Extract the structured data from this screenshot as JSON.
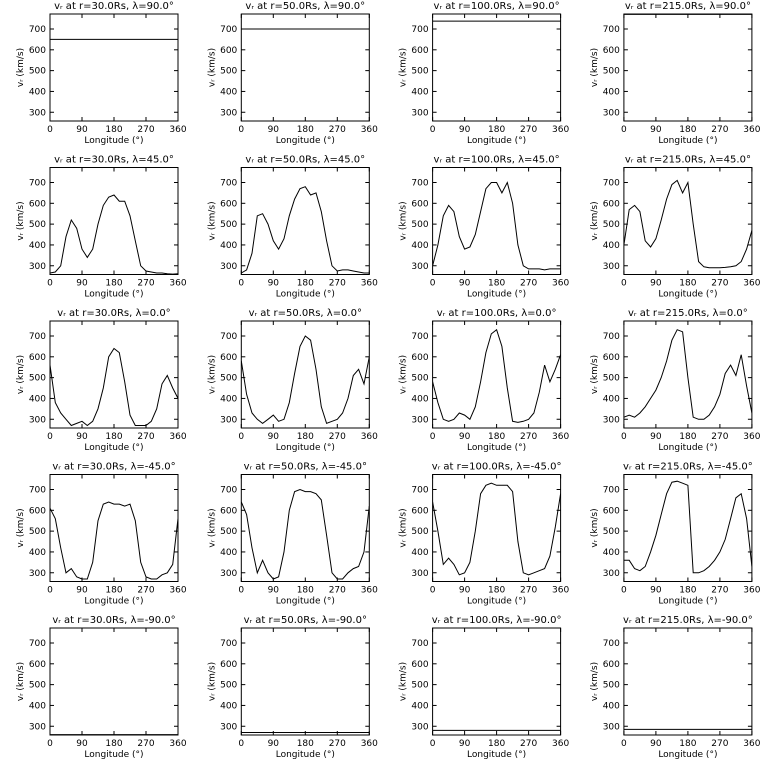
{
  "chart_data": [
    {
      "type": "line",
      "title": "vᵣ at r=30.0Rs, λ=90.0°",
      "xlabel": "Longitude (°)",
      "ylabel": "vᵣ (km/s)",
      "x": [
        0,
        360
      ],
      "values": [
        650,
        650
      ],
      "xlim": [
        0,
        360
      ],
      "ylim": [
        258,
        772
      ],
      "xticks": [
        0,
        90,
        180,
        270,
        360
      ],
      "yticks": [
        300,
        400,
        500,
        600,
        700
      ]
    },
    {
      "type": "line",
      "title": "vᵣ at r=50.0Rs, λ=90.0°",
      "xlabel": "Longitude (°)",
      "ylabel": "vᵣ (km/s)",
      "x": [
        0,
        360
      ],
      "values": [
        700,
        700
      ],
      "xlim": [
        0,
        360
      ],
      "ylim": [
        258,
        772
      ],
      "xticks": [
        0,
        90,
        180,
        270,
        360
      ],
      "yticks": [
        300,
        400,
        500,
        600,
        700
      ]
    },
    {
      "type": "line",
      "title": "vᵣ at r=100.0Rs, λ=90.0°",
      "xlabel": "Longitude (°)",
      "ylabel": "vᵣ (km/s)",
      "x": [
        0,
        360
      ],
      "values": [
        738,
        738
      ],
      "xlim": [
        0,
        360
      ],
      "ylim": [
        258,
        772
      ],
      "xticks": [
        0,
        90,
        180,
        270,
        360
      ],
      "yticks": [
        300,
        400,
        500,
        600,
        700
      ]
    },
    {
      "type": "line",
      "title": "vᵣ at r=215.0Rs, λ=90.0°",
      "xlabel": "Longitude (°)",
      "ylabel": "vᵣ (km/s)",
      "x": [
        0,
        360
      ],
      "values": [
        770,
        770
      ],
      "xlim": [
        0,
        360
      ],
      "ylim": [
        258,
        772
      ],
      "xticks": [
        0,
        90,
        180,
        270,
        360
      ],
      "yticks": [
        300,
        400,
        500,
        600,
        700
      ]
    },
    {
      "type": "line",
      "title": "vᵣ at r=30.0Rs, λ=45.0°",
      "xlabel": "Longitude (°)",
      "ylabel": "vᵣ (km/s)",
      "x": [
        0,
        15,
        30,
        45,
        60,
        75,
        90,
        105,
        120,
        135,
        150,
        165,
        180,
        195,
        210,
        225,
        240,
        255,
        270,
        285,
        300,
        315,
        330,
        345,
        360
      ],
      "values": [
        265,
        270,
        300,
        440,
        520,
        480,
        380,
        340,
        380,
        500,
        590,
        630,
        640,
        610,
        610,
        540,
        420,
        300,
        275,
        270,
        265,
        265,
        262,
        260,
        262
      ],
      "xlim": [
        0,
        360
      ],
      "ylim": [
        258,
        772
      ],
      "xticks": [
        0,
        90,
        180,
        270,
        360
      ],
      "yticks": [
        300,
        400,
        500,
        600,
        700
      ]
    },
    {
      "type": "line",
      "title": "vᵣ at r=50.0Rs, λ=45.0°",
      "xlabel": "Longitude (°)",
      "ylabel": "vᵣ (km/s)",
      "x": [
        0,
        15,
        30,
        45,
        60,
        75,
        90,
        105,
        120,
        135,
        150,
        165,
        180,
        195,
        210,
        225,
        240,
        255,
        270,
        285,
        300,
        315,
        330,
        345,
        360
      ],
      "values": [
        265,
        280,
        360,
        540,
        550,
        500,
        420,
        380,
        430,
        540,
        620,
        670,
        680,
        640,
        650,
        560,
        420,
        300,
        275,
        280,
        280,
        275,
        270,
        265,
        265
      ],
      "xlim": [
        0,
        360
      ],
      "ylim": [
        258,
        772
      ],
      "xticks": [
        0,
        90,
        180,
        270,
        360
      ],
      "yticks": [
        300,
        400,
        500,
        600,
        700
      ]
    },
    {
      "type": "line",
      "title": "vᵣ at r=100.0Rs, λ=45.0°",
      "xlabel": "Longitude (°)",
      "ylabel": "vᵣ (km/s)",
      "x": [
        0,
        15,
        30,
        45,
        60,
        75,
        90,
        105,
        120,
        135,
        150,
        165,
        180,
        195,
        210,
        225,
        240,
        255,
        270,
        285,
        300,
        315,
        330,
        345,
        360
      ],
      "values": [
        300,
        400,
        540,
        590,
        560,
        440,
        380,
        390,
        450,
        560,
        670,
        700,
        700,
        650,
        700,
        600,
        400,
        300,
        285,
        285,
        285,
        280,
        285,
        285,
        285
      ],
      "xlim": [
        0,
        360
      ],
      "ylim": [
        258,
        772
      ],
      "xticks": [
        0,
        90,
        180,
        270,
        360
      ],
      "yticks": [
        300,
        400,
        500,
        600,
        700
      ]
    },
    {
      "type": "line",
      "title": "vᵣ at r=215.0Rs, λ=45.0°",
      "xlabel": "Longitude (°)",
      "ylabel": "vᵣ (km/s)",
      "x": [
        0,
        15,
        30,
        45,
        60,
        75,
        90,
        105,
        120,
        135,
        150,
        165,
        180,
        195,
        210,
        225,
        240,
        255,
        270,
        285,
        300,
        315,
        330,
        345,
        360
      ],
      "values": [
        400,
        570,
        590,
        560,
        420,
        390,
        430,
        520,
        620,
        690,
        710,
        650,
        700,
        500,
        320,
        295,
        290,
        290,
        290,
        292,
        295,
        300,
        320,
        380,
        470
      ],
      "xlim": [
        0,
        360
      ],
      "ylim": [
        258,
        772
      ],
      "xticks": [
        0,
        90,
        180,
        270,
        360
      ],
      "yticks": [
        300,
        400,
        500,
        600,
        700
      ]
    },
    {
      "type": "line",
      "title": "vᵣ at r=30.0Rs, λ=0.0°",
      "xlabel": "Longitude (°)",
      "ylabel": "vᵣ (km/s)",
      "x": [
        0,
        15,
        30,
        45,
        60,
        75,
        90,
        105,
        120,
        135,
        150,
        165,
        180,
        195,
        210,
        225,
        240,
        255,
        270,
        285,
        300,
        315,
        330,
        345,
        360
      ],
      "values": [
        560,
        380,
        330,
        300,
        270,
        280,
        290,
        270,
        290,
        350,
        450,
        600,
        640,
        620,
        480,
        320,
        270,
        270,
        270,
        290,
        350,
        470,
        510,
        450,
        400
      ],
      "xlim": [
        0,
        360
      ],
      "ylim": [
        258,
        772
      ],
      "xticks": [
        0,
        90,
        180,
        270,
        360
      ],
      "yticks": [
        300,
        400,
        500,
        600,
        700
      ]
    },
    {
      "type": "line",
      "title": "vᵣ at r=50.0Rs, λ=0.0°",
      "xlabel": "Longitude (°)",
      "ylabel": "vᵣ (km/s)",
      "x": [
        0,
        15,
        30,
        45,
        60,
        75,
        90,
        105,
        120,
        135,
        150,
        165,
        180,
        195,
        210,
        225,
        240,
        255,
        270,
        285,
        300,
        315,
        330,
        345,
        360
      ],
      "values": [
        580,
        420,
        330,
        300,
        280,
        300,
        320,
        290,
        300,
        380,
        520,
        650,
        700,
        680,
        540,
        360,
        280,
        290,
        300,
        330,
        400,
        510,
        540,
        470,
        600
      ],
      "xlim": [
        0,
        360
      ],
      "ylim": [
        258,
        772
      ],
      "xticks": [
        0,
        90,
        180,
        270,
        360
      ],
      "yticks": [
        300,
        400,
        500,
        600,
        700
      ]
    },
    {
      "type": "line",
      "title": "vᵣ at r=100.0Rs, λ=0.0°",
      "xlabel": "Longitude (°)",
      "ylabel": "vᵣ (km/s)",
      "x": [
        0,
        15,
        30,
        45,
        60,
        75,
        90,
        105,
        120,
        135,
        150,
        165,
        180,
        195,
        210,
        225,
        240,
        255,
        270,
        285,
        300,
        315,
        330,
        345,
        360
      ],
      "values": [
        480,
        380,
        300,
        290,
        300,
        330,
        320,
        300,
        360,
        480,
        620,
        710,
        730,
        650,
        450,
        290,
        285,
        290,
        300,
        330,
        430,
        560,
        480,
        540,
        610
      ],
      "xlim": [
        0,
        360
      ],
      "ylim": [
        258,
        772
      ],
      "xticks": [
        0,
        90,
        180,
        270,
        360
      ],
      "yticks": [
        300,
        400,
        500,
        600,
        700
      ]
    },
    {
      "type": "line",
      "title": "vᵣ at r=215.0Rs, λ=0.0°",
      "xlabel": "Longitude (°)",
      "ylabel": "vᵣ (km/s)",
      "x": [
        0,
        15,
        30,
        45,
        60,
        75,
        90,
        105,
        120,
        135,
        150,
        165,
        180,
        195,
        210,
        225,
        240,
        255,
        270,
        285,
        300,
        315,
        330,
        345,
        360
      ],
      "values": [
        310,
        320,
        310,
        330,
        360,
        400,
        440,
        500,
        580,
        680,
        730,
        720,
        500,
        310,
        300,
        300,
        320,
        360,
        420,
        520,
        560,
        510,
        610,
        460,
        330
      ],
      "xlim": [
        0,
        360
      ],
      "ylim": [
        258,
        772
      ],
      "xticks": [
        0,
        90,
        180,
        270,
        360
      ],
      "yticks": [
        300,
        400,
        500,
        600,
        700
      ]
    },
    {
      "type": "line",
      "title": "vᵣ at r=30.0Rs, λ=-45.0°",
      "xlabel": "Longitude (°)",
      "ylabel": "vᵣ (km/s)",
      "x": [
        0,
        15,
        30,
        45,
        60,
        75,
        90,
        105,
        120,
        135,
        150,
        165,
        180,
        195,
        210,
        225,
        240,
        255,
        270,
        285,
        300,
        315,
        330,
        345,
        360
      ],
      "values": [
        610,
        560,
        420,
        300,
        320,
        280,
        270,
        270,
        350,
        550,
        630,
        640,
        630,
        630,
        620,
        630,
        550,
        350,
        280,
        270,
        270,
        290,
        300,
        340,
        560
      ],
      "xlim": [
        0,
        360
      ],
      "ylim": [
        258,
        772
      ],
      "xticks": [
        0,
        90,
        180,
        270,
        360
      ],
      "yticks": [
        300,
        400,
        500,
        600,
        700
      ]
    },
    {
      "type": "line",
      "title": "vᵣ at r=50.0Rs, λ=-45.0°",
      "xlabel": "Longitude (°)",
      "ylabel": "vᵣ (km/s)",
      "x": [
        0,
        15,
        30,
        45,
        60,
        75,
        90,
        105,
        120,
        135,
        150,
        165,
        180,
        195,
        210,
        225,
        240,
        255,
        270,
        285,
        300,
        315,
        330,
        345,
        360
      ],
      "values": [
        640,
        580,
        420,
        300,
        360,
        300,
        270,
        280,
        400,
        600,
        690,
        700,
        690,
        690,
        680,
        650,
        480,
        300,
        270,
        270,
        300,
        320,
        330,
        400,
        620
      ],
      "xlim": [
        0,
        360
      ],
      "ylim": [
        258,
        772
      ],
      "xticks": [
        0,
        90,
        180,
        270,
        360
      ],
      "yticks": [
        300,
        400,
        500,
        600,
        700
      ]
    },
    {
      "type": "line",
      "title": "vᵣ at r=100.0Rs, λ=-45.0°",
      "xlabel": "Longitude (°)",
      "ylabel": "vᵣ (km/s)",
      "x": [
        0,
        15,
        30,
        45,
        60,
        75,
        90,
        105,
        120,
        135,
        150,
        165,
        180,
        195,
        210,
        225,
        240,
        255,
        270,
        285,
        300,
        315,
        330,
        345,
        360
      ],
      "values": [
        640,
        500,
        340,
        370,
        340,
        290,
        300,
        350,
        500,
        680,
        720,
        730,
        720,
        720,
        720,
        690,
        450,
        300,
        290,
        300,
        310,
        320,
        380,
        520,
        680
      ],
      "xlim": [
        0,
        360
      ],
      "ylim": [
        258,
        772
      ],
      "xticks": [
        0,
        90,
        180,
        270,
        360
      ],
      "yticks": [
        300,
        400,
        500,
        600,
        700
      ]
    },
    {
      "type": "line",
      "title": "vᵣ at r=215.0Rs, λ=-45.0°",
      "xlabel": "Longitude (°)",
      "ylabel": "vᵣ (km/s)",
      "x": [
        0,
        15,
        30,
        45,
        60,
        75,
        90,
        105,
        120,
        135,
        150,
        165,
        180,
        195,
        210,
        225,
        240,
        255,
        270,
        285,
        300,
        315,
        330,
        345,
        360
      ],
      "values": [
        360,
        360,
        320,
        310,
        330,
        400,
        480,
        580,
        680,
        735,
        740,
        730,
        720,
        300,
        300,
        310,
        330,
        360,
        400,
        460,
        560,
        660,
        680,
        560,
        330
      ],
      "xlim": [
        0,
        360
      ],
      "ylim": [
        258,
        772
      ],
      "xticks": [
        0,
        90,
        180,
        270,
        360
      ],
      "yticks": [
        300,
        400,
        500,
        600,
        700
      ]
    },
    {
      "type": "line",
      "title": "vᵣ at r=30.0Rs, λ=-90.0°",
      "xlabel": "Longitude (°)",
      "ylabel": "vᵣ (km/s)",
      "x": [
        0,
        360
      ],
      "values": [
        260,
        260
      ],
      "xlim": [
        0,
        360
      ],
      "ylim": [
        258,
        772
      ],
      "xticks": [
        0,
        90,
        180,
        270,
        360
      ],
      "yticks": [
        300,
        400,
        500,
        600,
        700
      ]
    },
    {
      "type": "line",
      "title": "vᵣ at r=50.0Rs, λ=-90.0°",
      "xlabel": "Longitude (°)",
      "ylabel": "vᵣ (km/s)",
      "x": [
        0,
        360
      ],
      "values": [
        270,
        270
      ],
      "xlim": [
        0,
        360
      ],
      "ylim": [
        258,
        772
      ],
      "xticks": [
        0,
        90,
        180,
        270,
        360
      ],
      "yticks": [
        300,
        400,
        500,
        600,
        700
      ]
    },
    {
      "type": "line",
      "title": "vᵣ at r=100.0Rs, λ=-90.0°",
      "xlabel": "Longitude (°)",
      "ylabel": "vᵣ (km/s)",
      "x": [
        0,
        360
      ],
      "values": [
        280,
        280
      ],
      "xlim": [
        0,
        360
      ],
      "ylim": [
        258,
        772
      ],
      "xticks": [
        0,
        90,
        180,
        270,
        360
      ],
      "yticks": [
        300,
        400,
        500,
        600,
        700
      ]
    },
    {
      "type": "line",
      "title": "vᵣ at r=215.0Rs, λ=-90.0°",
      "xlabel": "Longitude (°)",
      "ylabel": "vᵣ (km/s)",
      "x": [
        0,
        360
      ],
      "values": [
        285,
        285
      ],
      "xlim": [
        0,
        360
      ],
      "ylim": [
        258,
        772
      ],
      "xticks": [
        0,
        90,
        180,
        270,
        360
      ],
      "yticks": [
        300,
        400,
        500,
        600,
        700
      ]
    }
  ]
}
